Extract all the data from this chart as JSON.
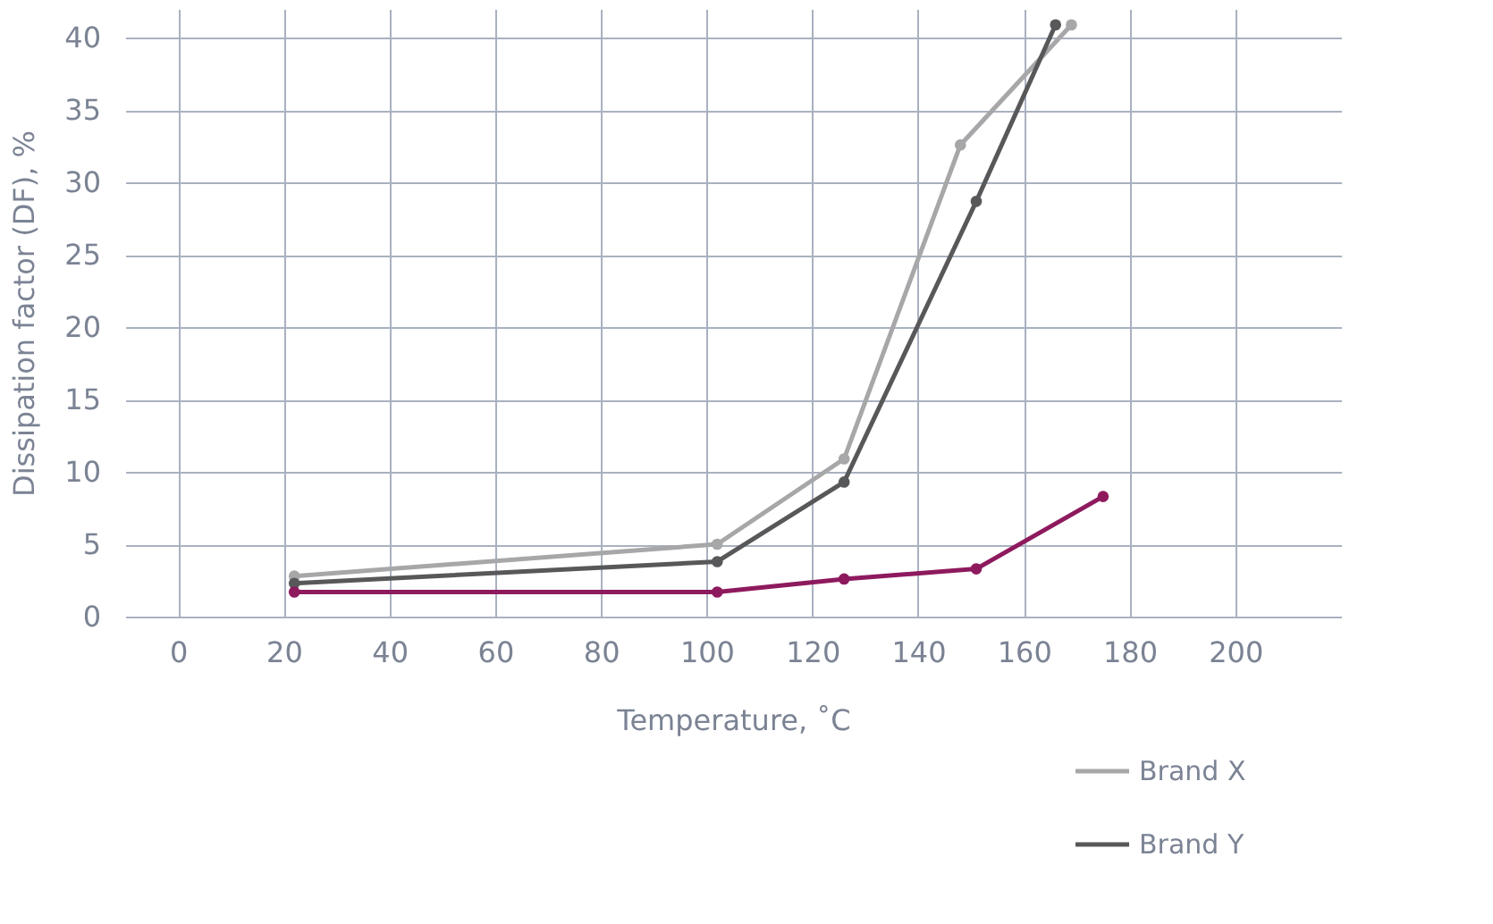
{
  "chart_data": {
    "type": "line",
    "xlabel": "Temperature, ˚C",
    "ylabel": "Dissipation factor (DF), %",
    "xlim": [
      -10,
      220
    ],
    "xticks": [
      0,
      20,
      40,
      60,
      80,
      100,
      120,
      140,
      160,
      180,
      200
    ],
    "ylim": [
      0,
      42
    ],
    "yticks": [
      0,
      5,
      10,
      15,
      20,
      25,
      30,
      35,
      40
    ],
    "grid": true,
    "legend": "bottom right",
    "marker": "circle",
    "line_style": "solid",
    "series": [
      {
        "name": "Brand X",
        "color": "#a7a7a9",
        "x": [
          22,
          102,
          126,
          148,
          169
        ],
        "values": [
          2.8,
          5,
          10.9,
          32.6,
          40.9
        ]
      },
      {
        "name": "Brand Y",
        "color": "#58585a",
        "x": [
          22,
          102,
          126,
          151,
          166
        ],
        "values": [
          2.3,
          3.8,
          9.3,
          28.7,
          40.9
        ]
      },
      {
        "color": "#8e1a5e",
        "x": [
          22,
          102,
          126,
          151,
          175
        ],
        "values": [
          1.7,
          1.7,
          2.6,
          3.3,
          8.3
        ]
      }
    ]
  }
}
